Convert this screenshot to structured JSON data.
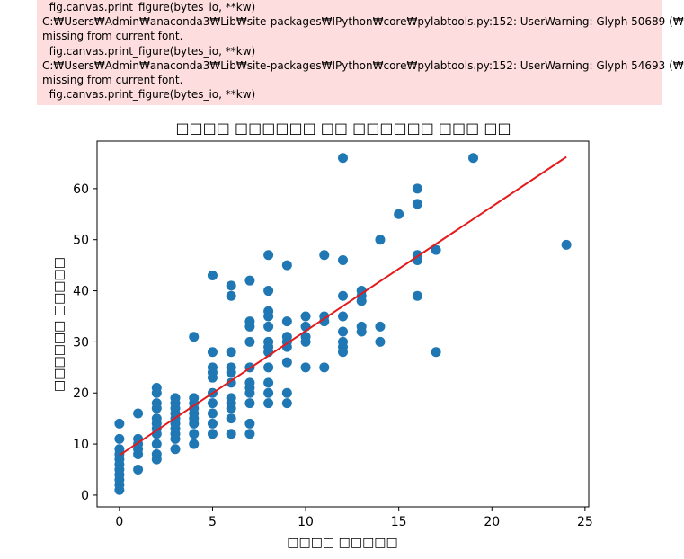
{
  "output": {
    "warning_lines": [
      "  fig.canvas.print_figure(bytes_io, **kw)",
      "C:₩Users₩Admin₩anaconda3₩Lib₩site-packages₩IPython₩core₩pylabtools.py:152: UserWarning: Glyph 50689 (₩",
      "missing from current font.",
      "  fig.canvas.print_figure(bytes_io, **kw)",
      "C:₩Users₩Admin₩anaconda3₩Lib₩site-packages₩IPython₩core₩pylabtools.py:152: UserWarning: Glyph 54693 (₩",
      "missing from current font.",
      "  fig.canvas.print_figure(bytes_io, **kw)"
    ]
  },
  "chart_data": {
    "type": "scatter",
    "title": "□□□□ □□□□□□ □□ □□□□□□ □□□ □□",
    "xlabel": "□□□□ □□□□□",
    "ylabel": "□□□□□□ □□□□□",
    "xlim": [
      -1.2,
      25.2
    ],
    "ylim": [
      -2.3,
      69.3
    ],
    "xticks": [
      0,
      5,
      10,
      15,
      20,
      25
    ],
    "yticks": [
      0,
      10,
      20,
      30,
      40,
      50,
      60
    ],
    "grid": false,
    "point_color": "#1f77b4",
    "line_color": "#e41a1c",
    "points": [
      [
        0,
        1
      ],
      [
        0,
        2
      ],
      [
        0,
        3
      ],
      [
        0,
        4
      ],
      [
        0,
        5
      ],
      [
        0,
        6
      ],
      [
        0,
        7
      ],
      [
        0,
        8
      ],
      [
        0,
        9
      ],
      [
        0,
        11
      ],
      [
        0,
        14
      ],
      [
        1,
        5
      ],
      [
        1,
        8
      ],
      [
        1,
        9
      ],
      [
        1,
        10
      ],
      [
        1,
        11
      ],
      [
        1,
        16
      ],
      [
        2,
        7
      ],
      [
        2,
        8
      ],
      [
        2,
        10
      ],
      [
        2,
        12
      ],
      [
        2,
        13
      ],
      [
        2,
        14
      ],
      [
        2,
        15
      ],
      [
        2,
        17
      ],
      [
        2,
        18
      ],
      [
        2,
        20
      ],
      [
        2,
        21
      ],
      [
        3,
        9
      ],
      [
        3,
        11
      ],
      [
        3,
        12
      ],
      [
        3,
        13
      ],
      [
        3,
        14
      ],
      [
        3,
        15
      ],
      [
        3,
        16
      ],
      [
        3,
        17
      ],
      [
        3,
        18
      ],
      [
        3,
        19
      ],
      [
        4,
        10
      ],
      [
        4,
        12
      ],
      [
        4,
        14
      ],
      [
        4,
        15
      ],
      [
        4,
        16
      ],
      [
        4,
        17
      ],
      [
        4,
        18
      ],
      [
        4,
        19
      ],
      [
        4,
        31
      ],
      [
        5,
        12
      ],
      [
        5,
        14
      ],
      [
        5,
        16
      ],
      [
        5,
        18
      ],
      [
        5,
        20
      ],
      [
        5,
        23
      ],
      [
        5,
        24
      ],
      [
        5,
        25
      ],
      [
        5,
        28
      ],
      [
        5,
        43
      ],
      [
        6,
        12
      ],
      [
        6,
        15
      ],
      [
        6,
        17
      ],
      [
        6,
        18
      ],
      [
        6,
        19
      ],
      [
        6,
        22
      ],
      [
        6,
        24
      ],
      [
        6,
        25
      ],
      [
        6,
        28
      ],
      [
        6,
        39
      ],
      [
        6,
        41
      ],
      [
        7,
        12
      ],
      [
        7,
        14
      ],
      [
        7,
        18
      ],
      [
        7,
        20
      ],
      [
        7,
        21
      ],
      [
        7,
        22
      ],
      [
        7,
        25
      ],
      [
        7,
        30
      ],
      [
        7,
        33
      ],
      [
        7,
        34
      ],
      [
        7,
        42
      ],
      [
        8,
        18
      ],
      [
        8,
        20
      ],
      [
        8,
        22
      ],
      [
        8,
        25
      ],
      [
        8,
        28
      ],
      [
        8,
        29
      ],
      [
        8,
        30
      ],
      [
        8,
        33
      ],
      [
        8,
        35
      ],
      [
        8,
        36
      ],
      [
        8,
        40
      ],
      [
        8,
        47
      ],
      [
        9,
        18
      ],
      [
        9,
        20
      ],
      [
        9,
        26
      ],
      [
        9,
        29
      ],
      [
        9,
        30
      ],
      [
        9,
        31
      ],
      [
        9,
        34
      ],
      [
        9,
        45
      ],
      [
        10,
        25
      ],
      [
        10,
        30
      ],
      [
        10,
        31
      ],
      [
        10,
        33
      ],
      [
        10,
        35
      ],
      [
        11,
        25
      ],
      [
        11,
        34
      ],
      [
        11,
        35
      ],
      [
        11,
        47
      ],
      [
        12,
        28
      ],
      [
        12,
        29
      ],
      [
        12,
        30
      ],
      [
        12,
        32
      ],
      [
        12,
        35
      ],
      [
        12,
        39
      ],
      [
        12,
        46
      ],
      [
        12,
        66
      ],
      [
        13,
        32
      ],
      [
        13,
        33
      ],
      [
        13,
        38
      ],
      [
        13,
        39
      ],
      [
        13,
        40
      ],
      [
        14,
        30
      ],
      [
        14,
        33
      ],
      [
        14,
        50
      ],
      [
        15,
        55
      ],
      [
        16,
        39
      ],
      [
        16,
        46
      ],
      [
        16,
        47
      ],
      [
        16,
        57
      ],
      [
        16,
        60
      ],
      [
        17,
        28
      ],
      [
        17,
        48
      ],
      [
        19,
        66
      ],
      [
        24,
        49
      ]
    ],
    "regression_line": {
      "x": [
        0,
        24
      ],
      "y": [
        7.8,
        66.2
      ]
    }
  }
}
